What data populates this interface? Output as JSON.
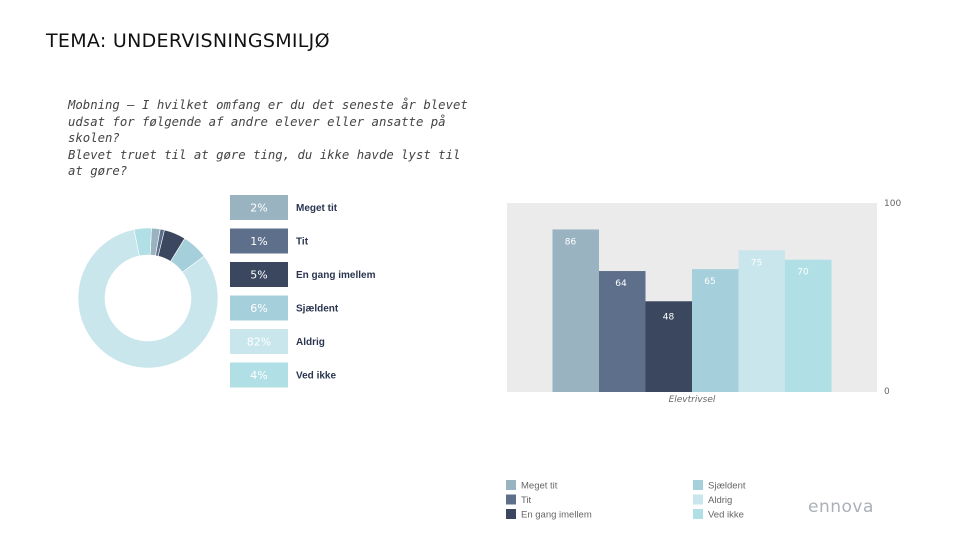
{
  "page": {
    "title": "TEMA: UNDERVISNINGSMILJØ",
    "question": "Mobning – I hvilket omfang er du det seneste år blevet\nudsat for følgende af andre elever eller ansatte på skolen?\nBlevet truet til at gøre ting, du ikke havde lyst til at gøre?",
    "brand": "ennova"
  },
  "chart_data": [
    {
      "type": "pie",
      "categories": [
        "Meget tit",
        "Tit",
        "En gang imellem",
        "Sjældent",
        "Aldrig",
        "Ved ikke"
      ],
      "values": [
        2,
        1,
        5,
        6,
        82,
        4
      ],
      "value_labels": [
        "2%",
        "1%",
        "5%",
        "6%",
        "82%",
        "4%"
      ],
      "colors": [
        "#9ab3c1",
        "#5e6f8b",
        "#3a475f",
        "#a6cfdc",
        "#c8e6ec",
        "#b0dfe6"
      ],
      "legend_placement": "right"
    },
    {
      "type": "bar",
      "categories": [
        "Meget tit",
        "Tit",
        "En gang imellem",
        "Sjældent",
        "Aldrig",
        "Ved ikke"
      ],
      "values": [
        86,
        64,
        48,
        65,
        75,
        70
      ],
      "colors": [
        "#9ab3c1",
        "#5e6f8b",
        "#3a475f",
        "#a6cfdc",
        "#c8e6ec",
        "#b0dfe6"
      ],
      "xlabel": "Elevtrivsel",
      "ylim": [
        0,
        100
      ],
      "y_ticks": [
        "100",
        "0"
      ],
      "legend": {
        "left": [
          "Meget tit",
          "Tit",
          "En gang imellem"
        ],
        "right": [
          "Sjældent",
          "Aldrig",
          "Ved ikke"
        ]
      },
      "legend_placement": "bottom"
    }
  ]
}
